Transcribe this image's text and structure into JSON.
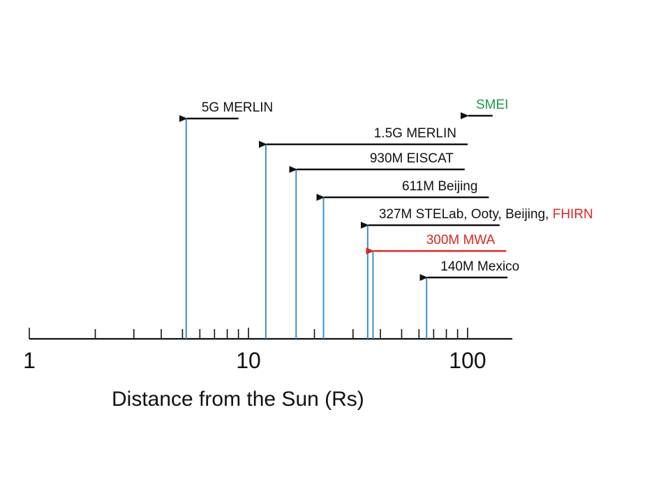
{
  "chart_data": {
    "type": "range-chart",
    "scale": "log",
    "xlim": [
      1,
      160
    ],
    "xlabel": "Distance from the Sun (Rs)",
    "tick_labels": [
      {
        "value": 1,
        "label": "1"
      },
      {
        "value": 10,
        "label": "10"
      },
      {
        "value": 100,
        "label": "100"
      }
    ],
    "colors": {
      "axis": "#111111",
      "vline": "#3a8fd0",
      "arrow_default": "#111111",
      "red": "#d92727",
      "green": "#1e9a4a"
    },
    "series": [
      {
        "parts": [
          {
            "text": "5G MERLIN",
            "color": "default"
          }
        ],
        "start": 5.2,
        "end": 9,
        "color": "default"
      },
      {
        "parts": [
          {
            "text": "SMEI",
            "color": "green"
          }
        ],
        "start": 100,
        "end": 130,
        "color": "default",
        "no_vline": true
      },
      {
        "parts": [
          {
            "text": "1.5G MERLIN",
            "color": "default"
          }
        ],
        "start": 12,
        "end": 100,
        "color": "default"
      },
      {
        "parts": [
          {
            "text": "930M EISCAT",
            "color": "default"
          }
        ],
        "start": 16.5,
        "end": 97,
        "color": "default"
      },
      {
        "parts": [
          {
            "text": "611M Beijing",
            "color": "default"
          }
        ],
        "start": 22,
        "end": 125,
        "color": "default"
      },
      {
        "parts": [
          {
            "text": "327M STELab, Ooty, Beijing, ",
            "color": "default"
          },
          {
            "text": "FHIRN",
            "color": "red"
          }
        ],
        "start": 35,
        "end": 140,
        "color": "default"
      },
      {
        "parts": [
          {
            "text": "300M MWA",
            "color": "red"
          }
        ],
        "start": 37,
        "end": 150,
        "color": "red"
      },
      {
        "parts": [
          {
            "text": "140M Mexico",
            "color": "default"
          }
        ],
        "start": 65,
        "end": 152,
        "color": "default"
      }
    ]
  }
}
